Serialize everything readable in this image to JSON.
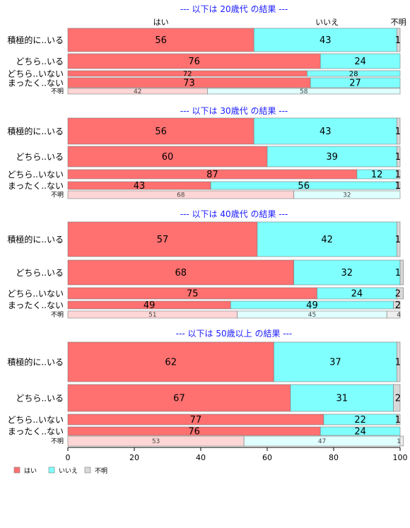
{
  "chart_data": {
    "type": "bar",
    "stacked": true,
    "orientation": "horizontal",
    "xlim": [
      0,
      100
    ],
    "x_ticks": [
      0,
      20,
      40,
      60,
      80,
      100
    ],
    "column_headers": [
      "はい",
      "いいえ",
      "不明"
    ],
    "legend": {
      "placement": "bottom-left",
      "entries": [
        {
          "label": "はい",
          "color": "#ff7070"
        },
        {
          "label": "いいえ",
          "color": "#80ffff"
        },
        {
          "label": "不明",
          "color": "#d9d9d9"
        }
      ]
    },
    "colors": {
      "yes": "#ff7070",
      "no": "#80ffff",
      "unknown": "#d9d9d9",
      "yes_light": "#ffd6d6",
      "no_light": "#e0ffff",
      "unknown_light": "#eeeeee",
      "title": "#1a1aff"
    },
    "panels": [
      {
        "title": "--- 以下は 20歳代 の結果 ---",
        "rows": [
          {
            "label": "積極的に..いる",
            "values": [
              56,
              43,
              1
            ],
            "labels": [
              "56",
              "43",
              "1"
            ]
          },
          {
            "label": "どちら..いる",
            "values": [
              76,
              24,
              0
            ],
            "labels": [
              "76",
              "24",
              ""
            ]
          },
          {
            "label": "どちら..いない",
            "values": [
              72,
              28,
              0
            ],
            "labels": [
              "72",
              "28",
              ""
            ]
          },
          {
            "label": "まったく..ない",
            "values": [
              73,
              27,
              0
            ],
            "labels": [
              "73",
              "27",
              ""
            ]
          },
          {
            "label": "不明",
            "values": [
              42,
              58,
              0
            ],
            "labels": [
              "42",
              "58",
              ""
            ]
          }
        ]
      },
      {
        "title": "--- 以下は 30歳代 の結果 ---",
        "rows": [
          {
            "label": "積極的に..いる",
            "values": [
              56,
              43,
              1
            ],
            "labels": [
              "56",
              "43",
              "1"
            ]
          },
          {
            "label": "どちら..いる",
            "values": [
              60,
              39,
              1
            ],
            "labels": [
              "60",
              "39",
              "1"
            ]
          },
          {
            "label": "どちら..いない",
            "values": [
              87,
              12,
              1
            ],
            "labels": [
              "87",
              "12",
              "1"
            ]
          },
          {
            "label": "まったく..ない",
            "values": [
              43,
              56,
              1
            ],
            "labels": [
              "43",
              "56",
              "1"
            ]
          },
          {
            "label": "不明",
            "values": [
              68,
              32,
              0
            ],
            "labels": [
              "68",
              "32",
              ""
            ]
          }
        ]
      },
      {
        "title": "--- 以下は 40歳代 の結果 ---",
        "rows": [
          {
            "label": "積極的に..いる",
            "values": [
              57,
              42,
              1
            ],
            "labels": [
              "57",
              "42",
              "1"
            ]
          },
          {
            "label": "どちら..いる",
            "values": [
              68,
              32,
              1
            ],
            "labels": [
              "68",
              "32",
              "1"
            ]
          },
          {
            "label": "どちら..いない",
            "values": [
              75,
              24,
              2
            ],
            "labels": [
              "75",
              "24",
              "2"
            ]
          },
          {
            "label": "まったく..ない",
            "values": [
              49,
              49,
              2
            ],
            "labels": [
              "49",
              "49",
              "2"
            ]
          },
          {
            "label": "不明",
            "values": [
              51,
              45,
              4
            ],
            "labels": [
              "51",
              "45",
              "4"
            ]
          }
        ]
      },
      {
        "title": "--- 以下は 50歳以上 の結果 ---",
        "rows": [
          {
            "label": "積極的に..いる",
            "values": [
              62,
              37,
              1
            ],
            "labels": [
              "62",
              "37",
              "1"
            ]
          },
          {
            "label": "どちら..いる",
            "values": [
              67,
              31,
              2
            ],
            "labels": [
              "67",
              "31",
              "2"
            ]
          },
          {
            "label": "どちら..いない",
            "values": [
              77,
              22,
              1
            ],
            "labels": [
              "77",
              "22",
              "1"
            ]
          },
          {
            "label": "まったく..ない",
            "values": [
              76,
              24,
              0
            ],
            "labels": [
              "76",
              "24",
              ""
            ]
          },
          {
            "label": "不明",
            "values": [
              53,
              47,
              1
            ],
            "labels": [
              "53",
              "47",
              "1"
            ]
          }
        ]
      }
    ]
  }
}
